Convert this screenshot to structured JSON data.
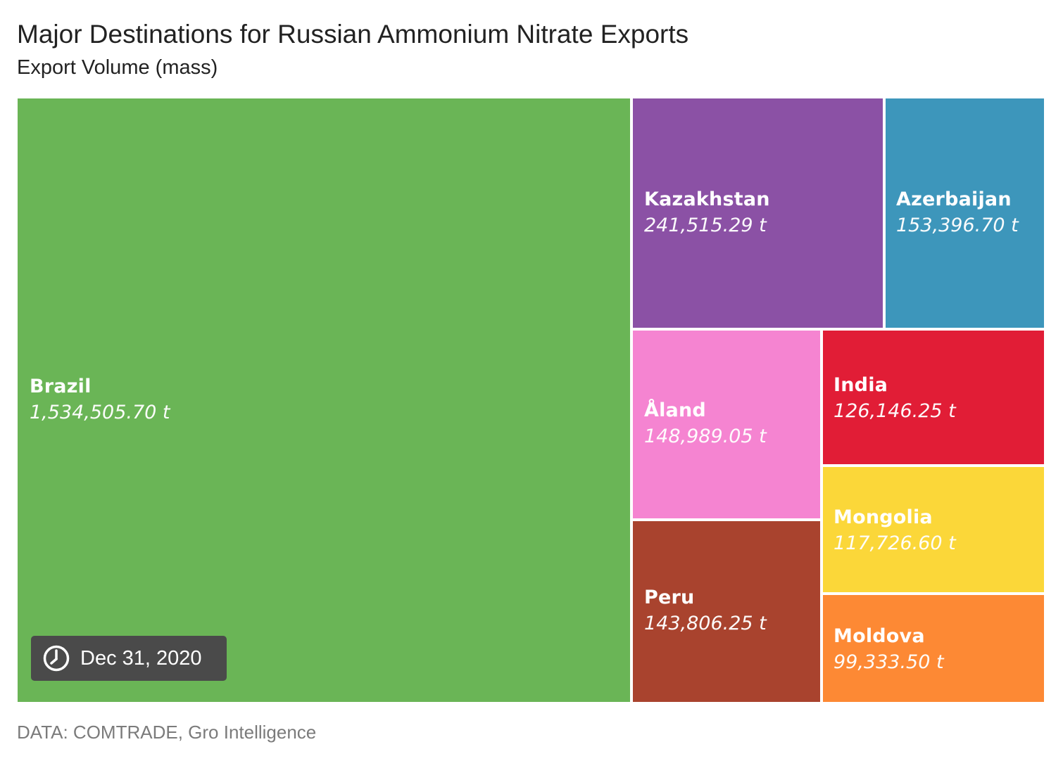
{
  "chart_data": {
    "type": "treemap",
    "title": "Major Destinations for Russian Ammonium Nitrate Exports",
    "subtitle": "Export Volume (mass)",
    "unit": "t",
    "date": "Dec 31, 2020",
    "source": "DATA: COMTRADE, Gro Intelligence",
    "items": [
      {
        "name": "Brazil",
        "value": 1534505.7,
        "value_label": "1,534,505.70 t",
        "color": "#6ab556"
      },
      {
        "name": "Kazakhstan",
        "value": 241515.29,
        "value_label": "241,515.29 t",
        "color": "#8b51a5"
      },
      {
        "name": "Azerbaijan",
        "value": 153396.7,
        "value_label": "153,396.70 t",
        "color": "#3d96bb"
      },
      {
        "name": "Åland",
        "value": 148989.05,
        "value_label": "148,989.05 t",
        "color": "#f584d1"
      },
      {
        "name": "Peru",
        "value": 143806.25,
        "value_label": "143,806.25 t",
        "color": "#a9432e"
      },
      {
        "name": "India",
        "value": 126146.25,
        "value_label": "126,146.25 t",
        "color": "#e11d36"
      },
      {
        "name": "Mongolia",
        "value": 117726.6,
        "value_label": "117,726.60 t",
        "color": "#fbd739"
      },
      {
        "name": "Moldova",
        "value": 99333.5,
        "value_label": "99,333.50 t",
        "color": "#fd8934"
      }
    ]
  }
}
